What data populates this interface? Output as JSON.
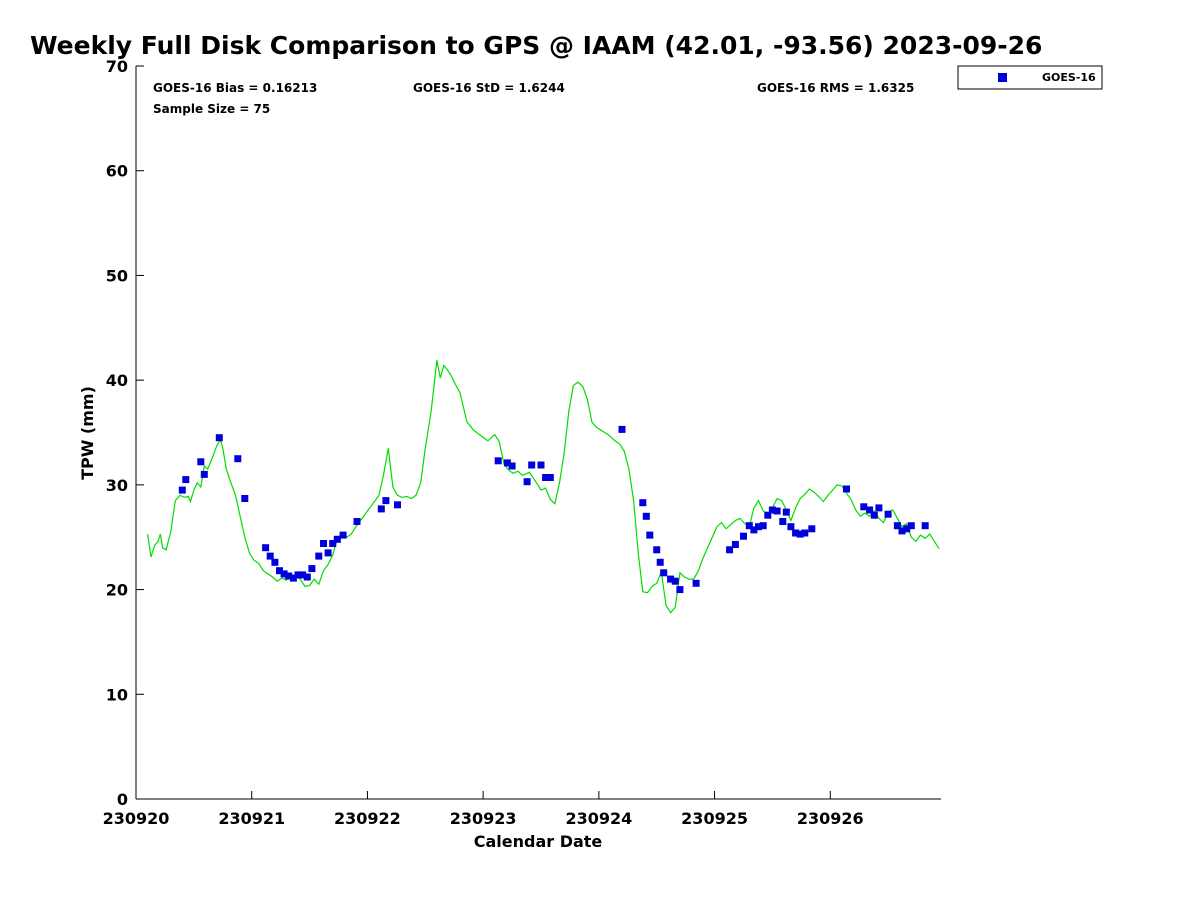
{
  "chart_data": {
    "type": "scatter",
    "title": "Weekly Full Disk Comparison to GPS @ IAAM (42.01, -93.56) 2023-09-26",
    "xlabel": "Calendar Date",
    "ylabel": "TPW (mm)",
    "xlim": [
      230920,
      230927
    ],
    "ylim": [
      0,
      70
    ],
    "x_ticks": [
      "230920",
      "230921",
      "230922",
      "230923",
      "230924",
      "230925",
      "230926"
    ],
    "y_ticks": [
      0,
      10,
      20,
      30,
      40,
      50,
      60,
      70
    ],
    "stats": {
      "bias": "GOES-16 Bias = 0.16213",
      "std": "GOES-16 StD = 1.6244",
      "rms": "GOES-16 RMS = 1.6325",
      "sample": "Sample Size = 75"
    },
    "legend": {
      "entries": [
        "GOES-16"
      ],
      "position": "top-right outside"
    },
    "grid": false,
    "colors": {
      "goes": "#0000dd",
      "gps": "#00dd00"
    },
    "gps_line": {
      "x": [
        230920.1,
        230920.13,
        230920.16,
        230920.19,
        230920.21,
        230920.23,
        230920.26,
        230920.3,
        230920.34,
        230920.38,
        230920.42,
        230920.45,
        230920.47,
        230920.5,
        230920.53,
        230920.56,
        230920.59,
        230920.62,
        230920.66,
        230920.7,
        230920.73,
        230920.75,
        230920.78,
        230920.82,
        230920.86,
        230920.9,
        230920.94,
        230920.98,
        230921.02,
        230921.06,
        230921.1,
        230921.14,
        230921.18,
        230921.22,
        230921.26,
        230921.3,
        230921.34,
        230921.38,
        230921.42,
        230921.46,
        230921.5,
        230921.54,
        230921.58,
        230921.62,
        230921.66,
        230921.7,
        230921.74,
        230921.78,
        230921.82,
        230921.86,
        230921.9,
        230921.94,
        230921.98,
        230922.02,
        230922.06,
        230922.1,
        230922.14,
        230922.18,
        230922.22,
        230922.26,
        230922.3,
        230922.34,
        230922.38,
        230922.42,
        230922.46,
        230922.5,
        230922.55,
        230922.6,
        230922.63,
        230922.66,
        230922.69,
        230922.72,
        230922.76,
        230922.8,
        230922.86,
        230922.92,
        230922.98,
        230923.04,
        230923.1,
        230923.14,
        230923.18,
        230923.22,
        230923.26,
        230923.3,
        230923.34,
        230923.4,
        230923.46,
        230923.5,
        230923.54,
        230923.58,
        230923.62,
        230923.66,
        230923.7,
        230923.74,
        230923.78,
        230923.82,
        230923.86,
        230923.9,
        230923.94,
        230923.98,
        230924.02,
        230924.08,
        230924.14,
        230924.18,
        230924.22,
        230924.26,
        230924.3,
        230924.34,
        230924.38,
        230924.42,
        230924.46,
        230924.5,
        230924.54,
        230924.58,
        230924.62,
        230924.66,
        230924.7,
        230924.74,
        230924.78,
        230924.82,
        230924.86,
        230924.9,
        230924.94,
        230924.98,
        230925.02,
        230925.06,
        230925.1,
        230925.14,
        230925.18,
        230925.22,
        230925.26,
        230925.3,
        230925.34,
        230925.38,
        230925.42,
        230925.46,
        230925.5,
        230925.54,
        230925.58,
        230925.62,
        230925.66,
        230925.7,
        230925.74,
        230925.78,
        230925.82,
        230925.86,
        230925.9,
        230925.94,
        230925.98,
        230926.02,
        230926.06,
        230926.1,
        230926.14,
        230926.18,
        230926.22,
        230926.26,
        230926.3,
        230926.34,
        230926.38,
        230926.42,
        230926.46,
        230926.5,
        230926.54,
        230926.58,
        230926.62,
        230926.66,
        230926.7,
        230926.74,
        230926.78,
        230926.82,
        230926.86,
        230926.9,
        230926.94
      ],
      "y": [
        25.3,
        23.1,
        24.2,
        24.6,
        25.3,
        24.0,
        23.8,
        25.5,
        28.5,
        29.0,
        28.8,
        28.9,
        28.4,
        29.5,
        30.2,
        29.8,
        31.8,
        31.5,
        32.6,
        33.8,
        34.3,
        33.5,
        31.5,
        30.2,
        29.0,
        27.0,
        25.0,
        23.5,
        22.8,
        22.5,
        21.8,
        21.5,
        21.2,
        20.8,
        21.1,
        20.9,
        21.4,
        21.2,
        21.0,
        20.3,
        20.4,
        21.0,
        20.5,
        21.8,
        22.4,
        23.3,
        24.8,
        25.4,
        25.0,
        25.3,
        26.0,
        26.6,
        27.2,
        27.8,
        28.4,
        29.0,
        31.0,
        33.5,
        29.8,
        29.0,
        28.8,
        28.9,
        28.7,
        29.0,
        30.2,
        33.5,
        37.0,
        41.9,
        40.2,
        41.4,
        41.0,
        40.5,
        39.6,
        38.8,
        36.0,
        35.2,
        34.7,
        34.2,
        34.8,
        34.1,
        32.0,
        31.4,
        31.1,
        31.3,
        30.9,
        31.2,
        30.2,
        29.5,
        29.7,
        28.6,
        28.2,
        30.2,
        33.0,
        37.0,
        39.5,
        39.8,
        39.4,
        38.2,
        36.0,
        35.5,
        35.2,
        34.8,
        34.2,
        33.9,
        33.2,
        31.5,
        28.5,
        23.5,
        19.8,
        19.7,
        20.3,
        20.6,
        21.7,
        18.5,
        17.8,
        18.3,
        21.6,
        21.2,
        21.0,
        21.0,
        21.8,
        23.0,
        24.0,
        25.0,
        26.0,
        26.4,
        25.8,
        26.2,
        26.6,
        26.8,
        26.3,
        26.0,
        27.8,
        28.5,
        27.5,
        27.2,
        27.8,
        28.7,
        28.5,
        27.6,
        26.6,
        27.8,
        28.7,
        29.1,
        29.6,
        29.3,
        28.9,
        28.4,
        29.0,
        29.5,
        30.0,
        29.9,
        29.2,
        28.6,
        27.6,
        27.0,
        27.3,
        27.0,
        27.5,
        26.8,
        26.4,
        27.4,
        27.6,
        26.8,
        26.0,
        26.3,
        25.0,
        24.6,
        25.2,
        24.9,
        25.3,
        24.6,
        23.9
      ]
    },
    "series": [
      {
        "name": "GOES-16",
        "x": [
          230920.4,
          230920.43,
          230920.56,
          230920.59,
          230920.72,
          230920.88,
          230920.94,
          230921.12,
          230921.16,
          230921.2,
          230921.24,
          230921.28,
          230921.32,
          230921.36,
          230921.4,
          230921.44,
          230921.48,
          230921.52,
          230921.58,
          230921.62,
          230921.66,
          230921.7,
          230921.74,
          230921.79,
          230921.91,
          230922.12,
          230922.16,
          230922.26,
          230923.13,
          230923.21,
          230923.25,
          230923.38,
          230923.42,
          230923.5,
          230923.54,
          230923.58,
          230924.2,
          230924.38,
          230924.41,
          230924.44,
          230924.5,
          230924.53,
          230924.56,
          230924.62,
          230924.66,
          230924.7,
          230924.84,
          230925.13,
          230925.18,
          230925.25,
          230925.3,
          230925.34,
          230925.38,
          230925.42,
          230925.46,
          230925.5,
          230925.54,
          230925.59,
          230925.62,
          230925.66,
          230925.7,
          230925.74,
          230925.78,
          230925.84,
          230926.14,
          230926.29,
          230926.34,
          230926.38,
          230926.42,
          230926.5,
          230926.58,
          230926.62,
          230926.66,
          230926.7,
          230926.82
        ],
        "y": [
          29.5,
          30.5,
          32.2,
          31.0,
          34.5,
          32.5,
          28.7,
          24.0,
          23.2,
          22.6,
          21.8,
          21.5,
          21.3,
          21.1,
          21.4,
          21.4,
          21.2,
          22.0,
          23.2,
          24.4,
          23.5,
          24.4,
          24.8,
          25.2,
          26.5,
          27.7,
          28.5,
          28.1,
          32.3,
          32.1,
          31.8,
          30.3,
          31.9,
          31.9,
          30.7,
          30.7,
          35.3,
          28.3,
          27.0,
          25.2,
          23.8,
          22.6,
          21.6,
          21.0,
          20.8,
          20.0,
          20.6,
          23.8,
          24.3,
          25.1,
          26.1,
          25.7,
          26.0,
          26.1,
          27.1,
          27.6,
          27.5,
          26.5,
          27.4,
          26.0,
          25.4,
          25.3,
          25.4,
          25.8,
          29.6,
          27.9,
          27.6,
          27.1,
          27.8,
          27.2,
          26.1,
          25.6,
          25.8,
          26.1,
          26.1
        ]
      }
    ]
  }
}
